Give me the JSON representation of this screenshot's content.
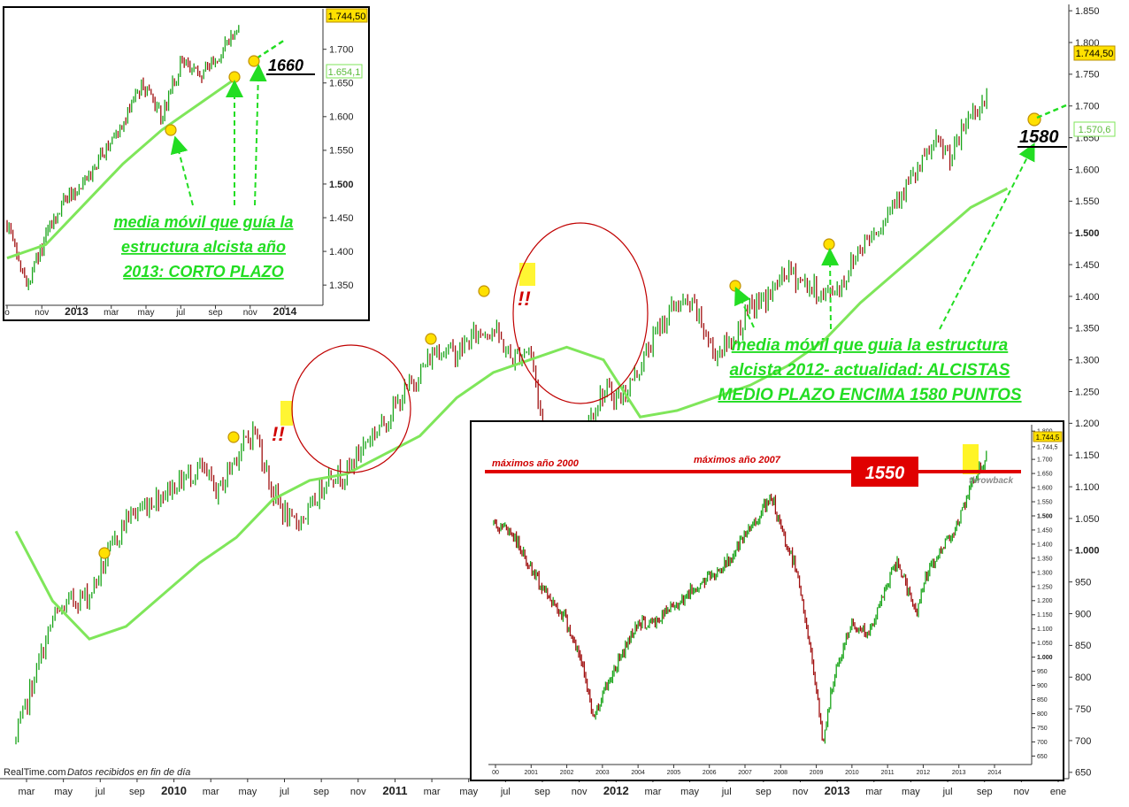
{
  "chart_data": [
    {
      "type": "line",
      "role": "main",
      "y_ticks": [
        "1.850",
        "1.800",
        "1.750",
        "1.700",
        "1.650",
        "1.600",
        "1.550",
        "1.500",
        "1.450",
        "1.400",
        "1.350",
        "1.300",
        "1.250",
        "1.200",
        "1.150",
        "1.100",
        "1.050",
        "1.000",
        "950",
        "900",
        "850",
        "800",
        "750",
        "700",
        "650"
      ],
      "ylim": [
        640,
        1860
      ],
      "x_labels": [
        "mar",
        "may",
        "jul",
        "sep",
        "2010",
        "mar",
        "may",
        "jul",
        "sep",
        "nov",
        "2011",
        "mar",
        "may",
        "jul",
        "sep",
        "nov",
        "2012",
        "mar",
        "may",
        "jul",
        "sep",
        "nov",
        "2013",
        "mar",
        "may",
        "jul",
        "sep",
        "nov",
        "ene"
      ],
      "x_bold_labels": [
        "2010",
        "2011",
        "2012",
        "2013"
      ],
      "series": [
        {
          "type": "line",
          "x": [
            "2009-03",
            "2009-04",
            "2009-05",
            "2009-06",
            "2009-07",
            "2009-08",
            "2009-09",
            "2009-10",
            "2009-11",
            "2009-12",
            "2010-01",
            "2010-02",
            "2010-03",
            "2010-04",
            "2010-05",
            "2010-06",
            "2010-07",
            "2010-08",
            "2010-09",
            "2010-10",
            "2010-11",
            "2010-12",
            "2011-01",
            "2011-02",
            "2011-03",
            "2011-04",
            "2011-05",
            "2011-06",
            "2011-07",
            "2011-08",
            "2011-09",
            "2011-10",
            "2011-11",
            "2011-12",
            "2012-01",
            "2012-02",
            "2012-03",
            "2012-04",
            "2012-05",
            "2012-06",
            "2012-07",
            "2012-08",
            "2012-09",
            "2012-10",
            "2012-11",
            "2012-12",
            "2013-01",
            "2013-02",
            "2013-03",
            "2013-04",
            "2013-05",
            "2013-06",
            "2013-07",
            "2013-08"
          ],
          "y": [
            700,
            800,
            890,
            920,
            930,
            990,
            1050,
            1070,
            1090,
            1110,
            1130,
            1090,
            1150,
            1190,
            1090,
            1040,
            1060,
            1120,
            1120,
            1170,
            1200,
            1240,
            1280,
            1320,
            1310,
            1340,
            1350,
            1300,
            1320,
            1140,
            1160,
            1200,
            1250,
            1240,
            1290,
            1350,
            1390,
            1380,
            1310,
            1330,
            1380,
            1400,
            1440,
            1420,
            1400,
            1420,
            1480,
            1510,
            1560,
            1590,
            1640,
            1620,
            1690,
            1710
          ]
        },
        {
          "type": "line",
          "x": [
            "2009-03",
            "2009-05",
            "2009-07",
            "2009-09",
            "2009-11",
            "2010-01",
            "2010-03",
            "2010-05",
            "2010-07",
            "2010-09",
            "2010-11",
            "2011-01",
            "2011-03",
            "2011-05",
            "2011-07",
            "2011-09",
            "2011-11",
            "2012-01",
            "2012-03",
            "2012-05",
            "2012-07",
            "2012-09",
            "2012-11",
            "2013-01",
            "2013-03",
            "2013-05",
            "2013-07",
            "2013-09"
          ],
          "y": [
            1030,
            920,
            860,
            880,
            930,
            980,
            1020,
            1080,
            1110,
            1120,
            1150,
            1180,
            1240,
            1280,
            1300,
            1320,
            1300,
            1210,
            1220,
            1240,
            1260,
            1290,
            1330,
            1390,
            1440,
            1490,
            1540,
            1570
          ]
        }
      ],
      "price_label": "1.744,50",
      "ma_label": "1.570,6",
      "target_label": "1580",
      "annotation": [
        "media móvil que guia la estructura",
        "alcista 2012- actualidad: ALCISTAS",
        "MEDIO PLAZO ENCIMA 1580 PUNTOS"
      ],
      "warnings": [
        "!!",
        "!!"
      ],
      "source_brand": "RealTime.com",
      "source_text": "Datos recibidos en fin de día"
    },
    {
      "type": "line",
      "role": "inset-short-term",
      "y_ticks": [
        "1.700",
        "1.650",
        "1.600",
        "1.550",
        "1.500",
        "1.450",
        "1.400",
        "1.350"
      ],
      "ylim": [
        1320,
        1760
      ],
      "x_labels": [
        "o",
        "nov",
        "2013",
        "mar",
        "may",
        "jul",
        "sep",
        "nov",
        "2014"
      ],
      "series": [
        {
          "type": "line",
          "x": [
            "2012-10",
            "2012-11",
            "2012-12",
            "2013-01",
            "2013-02",
            "2013-03",
            "2013-04",
            "2013-05",
            "2013-06",
            "2013-07",
            "2013-08",
            "2013-09",
            "2013-10"
          ],
          "y": [
            1440,
            1350,
            1420,
            1480,
            1500,
            1550,
            1590,
            1650,
            1600,
            1680,
            1660,
            1690,
            1740
          ]
        },
        {
          "type": "line",
          "x": [
            "2012-10",
            "2012-12",
            "2013-02",
            "2013-04",
            "2013-06",
            "2013-08",
            "2013-10"
          ],
          "y": [
            1390,
            1410,
            1470,
            1530,
            1580,
            1620,
            1660
          ]
        }
      ],
      "price_label": "1.744,50",
      "ma_label": "1.654,1",
      "target_label": "1660",
      "annotation": [
        "media móvil que guía la",
        "estructura alcista año",
        "2013: CORTO PLAZO"
      ]
    },
    {
      "type": "line",
      "role": "inset-long-term",
      "y_ticks": [
        "1.800",
        "1.744,5",
        "1.700",
        "1.650",
        "1.600",
        "1.550",
        "1.500",
        "1.450",
        "1.400",
        "1.350",
        "1.300",
        "1.250",
        "1.200",
        "1.150",
        "1.100",
        "1.050",
        "1.000",
        "950",
        "900",
        "850",
        "800",
        "750",
        "700",
        "650"
      ],
      "ylim": [
        620,
        1810
      ],
      "x_labels": [
        "00",
        "2001",
        "2002",
        "2003",
        "2004",
        "2005",
        "2006",
        "2007",
        "2008",
        "2009",
        "2010",
        "2011",
        "2012",
        "2013",
        "2014"
      ],
      "series": [
        {
          "type": "line",
          "x": [
            2000.0,
            2000.5,
            2001.0,
            2001.5,
            2002.0,
            2002.5,
            2002.8,
            2003.0,
            2003.5,
            2004.0,
            2004.5,
            2005.0,
            2005.5,
            2006.0,
            2006.5,
            2007.0,
            2007.5,
            2007.8,
            2008.0,
            2008.5,
            2009.0,
            2009.2,
            2009.5,
            2010.0,
            2010.5,
            2011.0,
            2011.3,
            2011.8,
            2012.0,
            2012.5,
            2013.0,
            2013.5,
            2013.8
          ],
          "y": [
            1470,
            1440,
            1320,
            1220,
            1140,
            960,
            780,
            860,
            990,
            1120,
            1120,
            1180,
            1230,
            1280,
            1330,
            1420,
            1520,
            1560,
            1460,
            1300,
            900,
            700,
            920,
            1120,
            1080,
            1260,
            1340,
            1150,
            1260,
            1380,
            1480,
            1650,
            1710
          ]
        }
      ],
      "resistance_level": 1550,
      "resistance_label": "1550",
      "price_label": "1.744,5",
      "labels": {
        "max_2000": "máximos año 2000",
        "max_2007": "máximos año 2007",
        "throwback": "throwback"
      }
    }
  ],
  "colors": {
    "bull_bar": "#1aa51a",
    "bear_bar": "#a01010",
    "moving_average": "#7fe65a",
    "annotation": "#22dd22",
    "arrow": "#22dd22",
    "marker": "#ffe000",
    "highlight": "#fff200",
    "resistance": "#e00000",
    "ellipse": "#c00000"
  }
}
